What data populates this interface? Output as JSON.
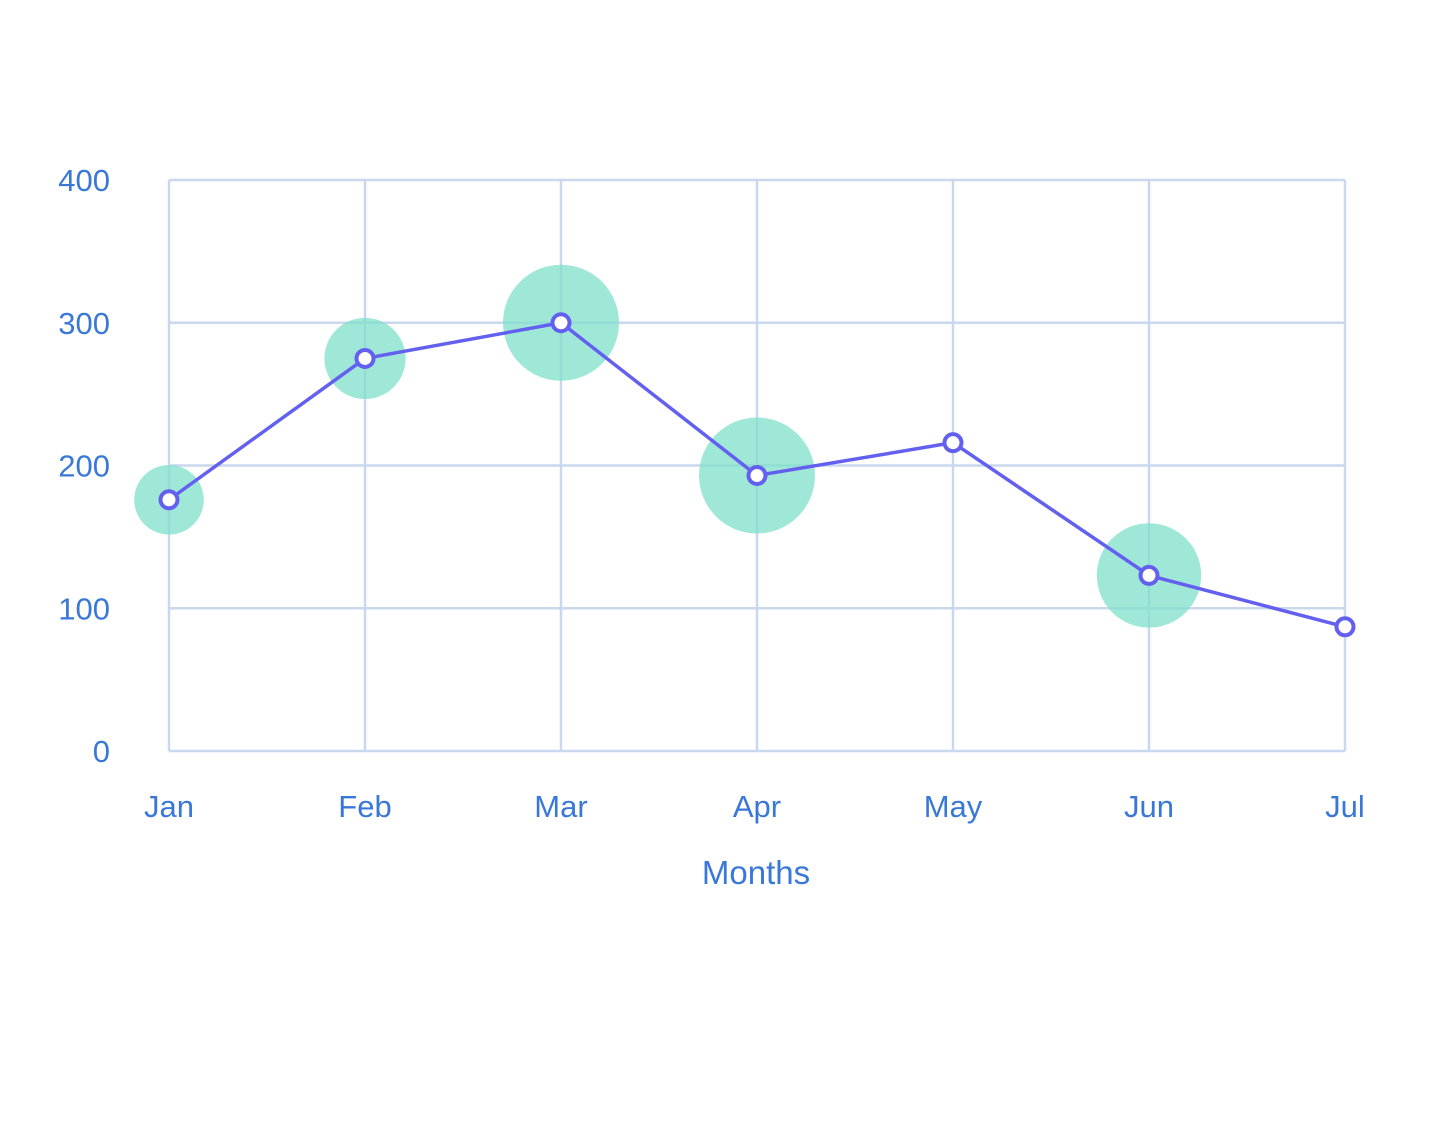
{
  "chart_data": {
    "type": "line",
    "title": "",
    "xlabel": "Months",
    "ylabel": "",
    "categories": [
      "Jan",
      "Feb",
      "Mar",
      "Apr",
      "May",
      "Jun",
      "Jul"
    ],
    "ylim": [
      0,
      400
    ],
    "yticks": [
      "0",
      "100",
      "200",
      "300",
      "400"
    ],
    "grid": true,
    "series": [
      {
        "values": [
          176,
          275,
          300,
          193,
          216,
          123,
          87
        ],
        "color": "#6360f0"
      }
    ],
    "bubbles": {
      "color": "#7fe0cb",
      "sizes": [
        12,
        14,
        20,
        20,
        0,
        18,
        0
      ]
    },
    "colors": {
      "grid": "#c9d8ee",
      "text": "#3a78d8",
      "line": "#6360f0",
      "bubble": "#7fe0cb"
    }
  }
}
